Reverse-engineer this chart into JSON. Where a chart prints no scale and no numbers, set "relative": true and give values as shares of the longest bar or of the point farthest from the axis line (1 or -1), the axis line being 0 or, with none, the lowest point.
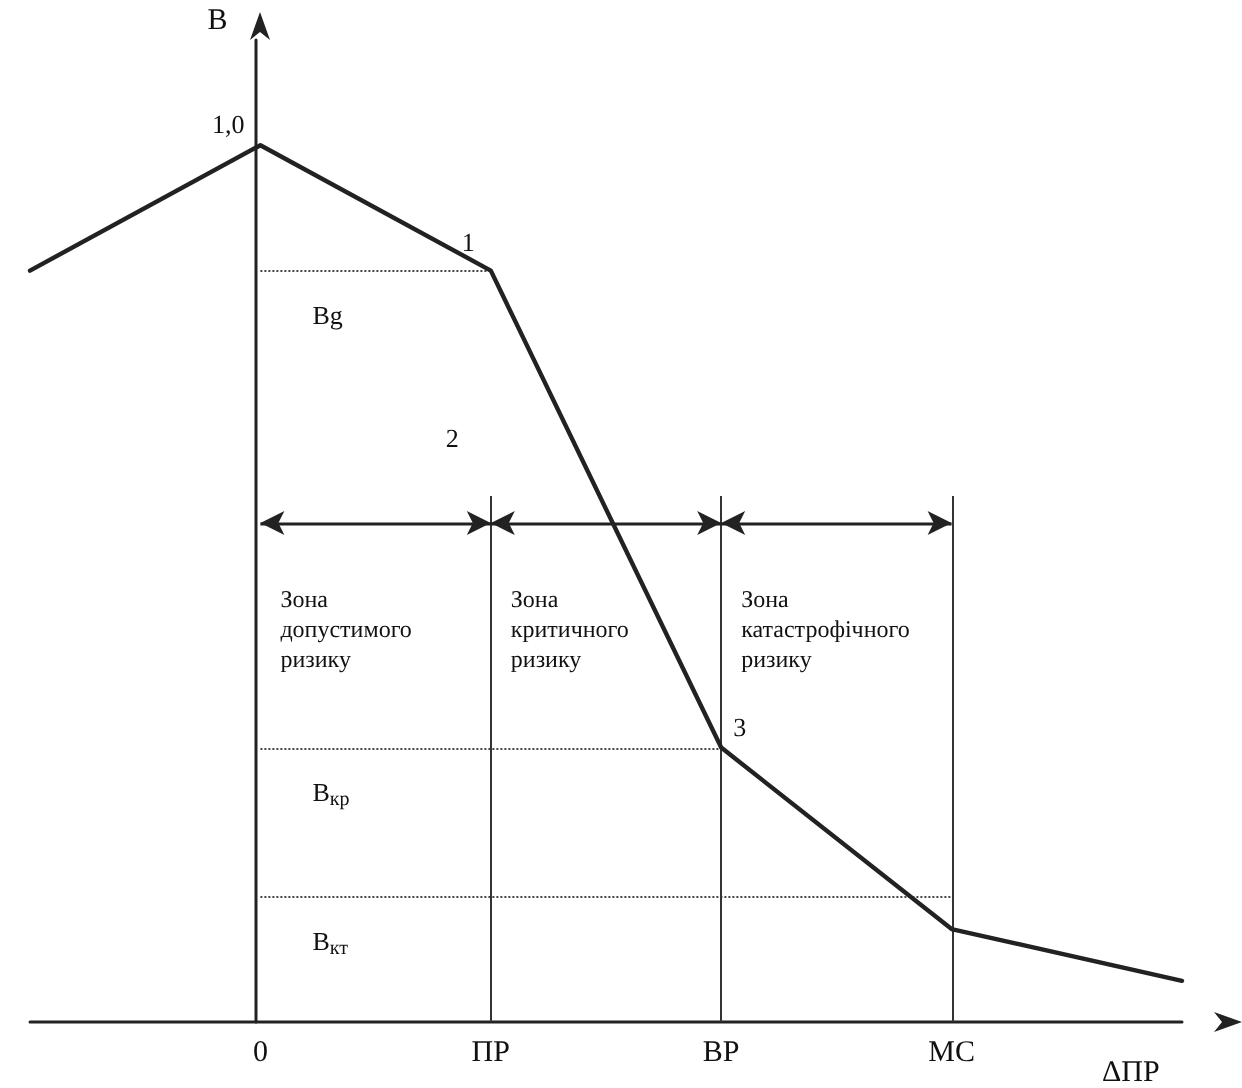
{
  "chart_data": {
    "type": "line",
    "relative": true,
    "xlabel": "ΔПР",
    "ylabel": "B",
    "categories": [
      null,
      "0",
      "ПР",
      "ВР",
      "МС",
      null
    ],
    "series": [
      {
        "color": "#222222",
        "values": [
          0.857,
          1,
          0.857,
          0.313,
          0.106,
          0.047
        ]
      }
    ],
    "ref_lines": [
      {
        "axis": "y",
        "value": 0.857,
        "label": "Bg",
        "line_style": "dotted"
      },
      {
        "axis": "y",
        "value": 0.313,
        "label": "B$_{кр}$",
        "line_style": "dotted"
      },
      {
        "axis": "y",
        "value": 0.143,
        "label": "B$_{кт}$",
        "line_style": "dotted"
      },
      {
        "axis": "x",
        "value": "ПР",
        "line_style": "solid"
      },
      {
        "axis": "x",
        "value": "ВР",
        "line_style": "solid"
      },
      {
        "axis": "x",
        "value": "МС",
        "line_style": "solid"
      }
    ],
    "annotations": [
      {
        "text": "1,0",
        "x": "0",
        "y": 1
      },
      {
        "text": "1",
        "x": "ПР",
        "y": 0.857
      },
      "2",
      {
        "text": "3",
        "x": "ВР",
        "y": 0.313
      },
      "Зона допустимого ризику",
      "Зона критичного ризику",
      "Зона катастрофічного ризику"
    ],
    "marker": "none",
    "line_style": "solid",
    "tick_labels": "x"
  }
}
